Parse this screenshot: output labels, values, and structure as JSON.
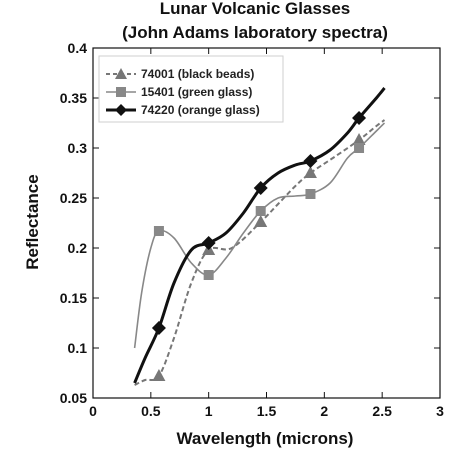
{
  "chart_data": {
    "type": "line",
    "title": "Lunar Volcanic Glasses",
    "subtitle": "(John Adams laboratory spectra)",
    "xlabel": "Wavelength (microns)",
    "ylabel": "Reflectance",
    "xlim": [
      0,
      3
    ],
    "ylim": [
      0.05,
      0.4
    ],
    "xticks": [
      "0",
      "0.5",
      "1",
      "1.5",
      "2",
      "2.5",
      "3"
    ],
    "yticks": [
      "0.05",
      "0.1",
      "0.15",
      "0.2",
      "0.25",
      "0.3",
      "0.35",
      "0.4"
    ],
    "grid": false,
    "legend_position": "top-left",
    "series": [
      {
        "name": "74001 (black beads)",
        "color": "#777777",
        "dash": "dashed",
        "marker": "triangle",
        "curve": [
          [
            0.36,
            0.063
          ],
          [
            0.45,
            0.068
          ],
          [
            0.57,
            0.072
          ],
          [
            0.7,
            0.11
          ],
          [
            0.85,
            0.165
          ],
          [
            1.0,
            0.198
          ],
          [
            1.2,
            0.2
          ],
          [
            1.45,
            0.226
          ],
          [
            1.6,
            0.244
          ],
          [
            1.75,
            0.262
          ],
          [
            1.88,
            0.275
          ],
          [
            2.1,
            0.292
          ],
          [
            2.3,
            0.308
          ],
          [
            2.45,
            0.322
          ],
          [
            2.52,
            0.328
          ]
        ],
        "points": [
          [
            0.57,
            0.072
          ],
          [
            1.0,
            0.198
          ],
          [
            1.45,
            0.226
          ],
          [
            1.88,
            0.275
          ],
          [
            2.3,
            0.308
          ]
        ]
      },
      {
        "name": "15401 (green glass)",
        "color": "#888888",
        "dash": "solid",
        "marker": "square",
        "curve": [
          [
            0.36,
            0.1
          ],
          [
            0.42,
            0.155
          ],
          [
            0.5,
            0.2
          ],
          [
            0.57,
            0.217
          ],
          [
            0.7,
            0.21
          ],
          [
            0.85,
            0.185
          ],
          [
            1.0,
            0.173
          ],
          [
            1.15,
            0.19
          ],
          [
            1.3,
            0.215
          ],
          [
            1.45,
            0.237
          ],
          [
            1.6,
            0.25
          ],
          [
            1.75,
            0.252
          ],
          [
            1.88,
            0.254
          ],
          [
            2.05,
            0.265
          ],
          [
            2.2,
            0.29
          ],
          [
            2.3,
            0.3
          ],
          [
            2.45,
            0.317
          ],
          [
            2.52,
            0.325
          ]
        ],
        "points": [
          [
            0.57,
            0.217
          ],
          [
            1.0,
            0.173
          ],
          [
            1.45,
            0.237
          ],
          [
            1.88,
            0.254
          ],
          [
            2.3,
            0.3
          ]
        ]
      },
      {
        "name": "74220 (orange glass)",
        "color": "#111111",
        "dash": "solid",
        "marker": "diamond",
        "curve": [
          [
            0.36,
            0.065
          ],
          [
            0.45,
            0.09
          ],
          [
            0.57,
            0.12
          ],
          [
            0.7,
            0.165
          ],
          [
            0.85,
            0.198
          ],
          [
            1.0,
            0.205
          ],
          [
            1.15,
            0.215
          ],
          [
            1.3,
            0.235
          ],
          [
            1.45,
            0.26
          ],
          [
            1.6,
            0.275
          ],
          [
            1.75,
            0.283
          ],
          [
            1.88,
            0.287
          ],
          [
            2.05,
            0.298
          ],
          [
            2.2,
            0.315
          ],
          [
            2.3,
            0.33
          ],
          [
            2.45,
            0.35
          ],
          [
            2.52,
            0.36
          ]
        ],
        "points": [
          [
            0.57,
            0.12
          ],
          [
            1.0,
            0.205
          ],
          [
            1.45,
            0.26
          ],
          [
            1.88,
            0.287
          ],
          [
            2.3,
            0.33
          ]
        ]
      }
    ]
  }
}
